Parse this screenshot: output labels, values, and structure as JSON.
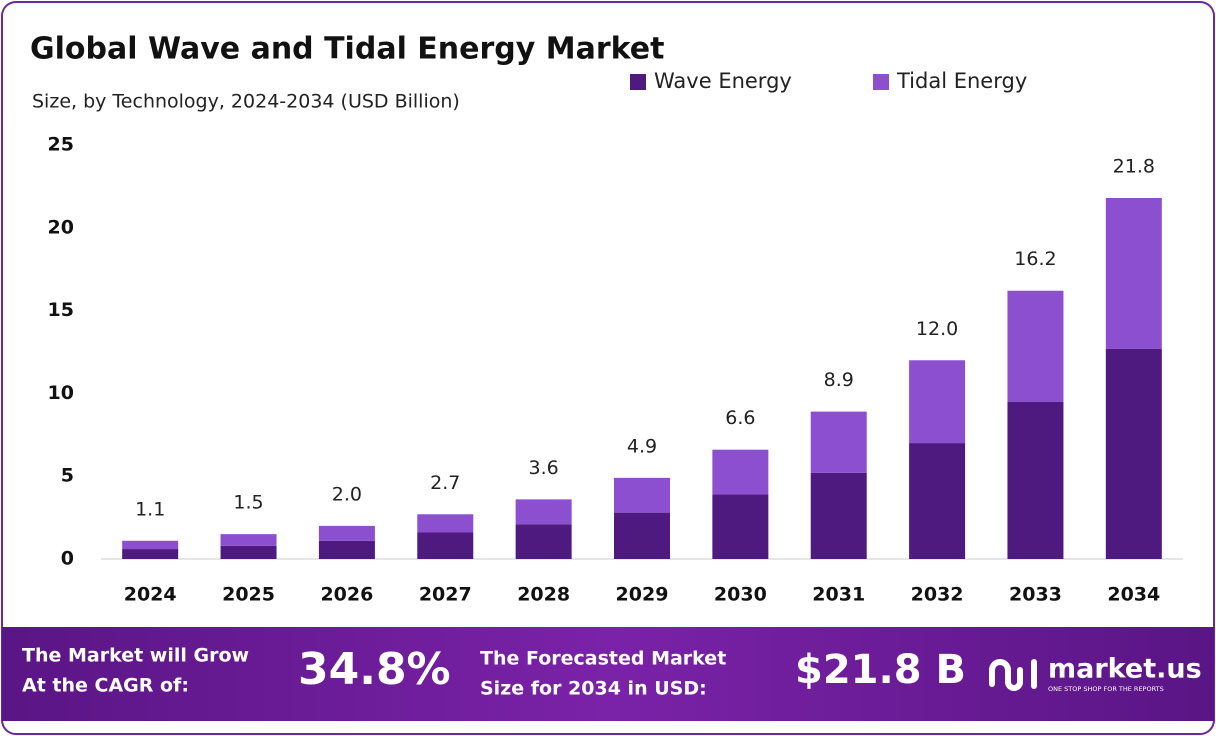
{
  "chart_data": {
    "type": "bar",
    "stacked": true,
    "title": "Global Wave and Tidal Energy Market",
    "subtitle": "Size, by Technology, 2024-2034 (USD Billion)",
    "categories": [
      "2024",
      "2025",
      "2026",
      "2027",
      "2028",
      "2029",
      "2030",
      "2031",
      "2032",
      "2033",
      "2034"
    ],
    "series": [
      {
        "name": "Wave Energy",
        "color": "#4e1a80",
        "values": [
          0.6,
          0.8,
          1.1,
          1.6,
          2.1,
          2.8,
          3.9,
          5.2,
          7.0,
          9.5,
          12.7
        ]
      },
      {
        "name": "Tidal Energy",
        "color": "#8b4fcf",
        "values": [
          0.5,
          0.7,
          0.9,
          1.1,
          1.5,
          2.1,
          2.7,
          3.7,
          5.0,
          6.7,
          9.1
        ]
      }
    ],
    "totals": [
      1.1,
      1.5,
      2.0,
      2.7,
      3.6,
      4.9,
      6.6,
      8.9,
      12.0,
      16.2,
      21.8
    ],
    "total_labels": [
      "1.1",
      "1.5",
      "2.0",
      "2.7",
      "3.6",
      "4.9",
      "6.6",
      "8.9",
      "12.0",
      "16.2",
      "21.8"
    ],
    "ylim": [
      0,
      25
    ],
    "yticks": [
      0,
      5,
      10,
      15,
      20,
      25
    ],
    "grid": false,
    "legend": "top-right"
  },
  "footer": {
    "cagr_text": [
      "The Market will Grow",
      "At the CAGR of:"
    ],
    "cagr_value": "34.8%",
    "forecast_text": [
      "The Forecasted Market",
      "Size for 2034 in USD:"
    ],
    "forecast_value": "$21.8 B",
    "brand": "market.us",
    "tagline": "ONE STOP SHOP FOR THE REPORTS"
  }
}
